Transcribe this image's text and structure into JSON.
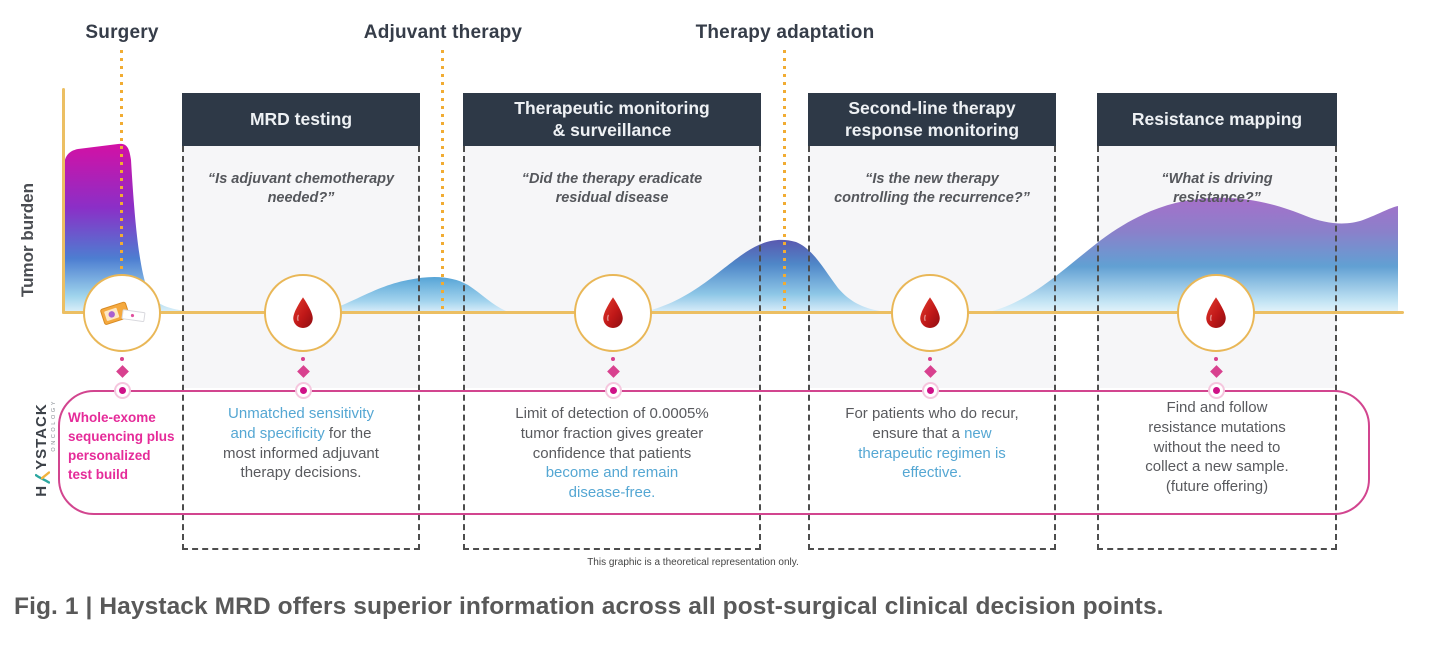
{
  "figure": {
    "caption": "Fig. 1 | Haystack MRD offers superior information across all post-surgical clinical decision points.",
    "disclaimer": "This graphic is a theoretical representation only.",
    "y_axis_label": "Tumor burden"
  },
  "timeline": {
    "events": [
      {
        "label": "Surgery"
      },
      {
        "label": "Adjuvant therapy"
      },
      {
        "label": "Therapy adaptation"
      }
    ]
  },
  "logo": {
    "brand_first": "H",
    "brand_rest": "YSTACK",
    "sub": "ONCOLOGY"
  },
  "pre_panel_note": {
    "segments": [
      {
        "t": "Whole-exome\nsequencing plus\npersonalized\ntest build",
        "c": "pink"
      }
    ]
  },
  "panels": [
    {
      "title": "MRD testing",
      "quote": "“Is adjuvant chemotherapy\nneeded?”",
      "benefit": {
        "segments": [
          {
            "t": "Unmatched sensitivity\nand specificity",
            "c": "accent"
          },
          {
            "t": " for the\nmost informed adjuvant\ntherapy decisions.",
            "c": "body"
          }
        ]
      }
    },
    {
      "title": "Therapeutic monitoring\n& surveillance",
      "quote": "“Did the therapy eradicate\nresidual disease",
      "benefit": {
        "segments": [
          {
            "t": "Limit of detection of 0.0005%\ntumor fraction gives greater\nconfidence that patients\n",
            "c": "body"
          },
          {
            "t": "become and remain\ndisease-free.",
            "c": "accent"
          }
        ]
      }
    },
    {
      "title": "Second-line therapy\nresponse monitoring",
      "quote": "“Is the new therapy\ncontrolling the recurrence?”",
      "benefit": {
        "segments": [
          {
            "t": "For patients who do recur,\nensure that a ",
            "c": "body"
          },
          {
            "t": "new\ntherapeutic regimen is\neffective.",
            "c": "accent"
          }
        ]
      }
    },
    {
      "title": "Resistance mapping",
      "quote": "“What is driving\nresistance?”",
      "benefit": {
        "segments": [
          {
            "t": "Find and follow\nresistance mutations\nwithout the need to\ncollect a new sample.\n(future offering)",
            "c": "body"
          }
        ]
      }
    }
  ],
  "sample_points": [
    {
      "icon": "tissue-sample-icon"
    },
    {
      "icon": "blood-drop-icon"
    },
    {
      "icon": "blood-drop-icon"
    },
    {
      "icon": "blood-drop-icon"
    },
    {
      "icon": "blood-drop-icon"
    }
  ],
  "curve": {
    "description": "Schematic tumor burden over time (theoretical)",
    "features": [
      "high tumor burden spike before surgery (magenta-purple gradient)",
      "small residual bump peaking at adjuvant therapy",
      "larger recurrence bump peaking at therapy adaptation",
      "broad rising resistance wave (purple) at far right"
    ]
  },
  "colors": {
    "header_bg": "#2e3947",
    "gold_axis": "#ecbf63",
    "gold_dots": "#f1ac33",
    "pink_border": "#d2458f",
    "magenta_text": "#e52b99",
    "accent_blue_text": "#55a7d3",
    "body_text": "#595a5e",
    "blood_red": "#b51717",
    "caption_text": "#595959"
  }
}
